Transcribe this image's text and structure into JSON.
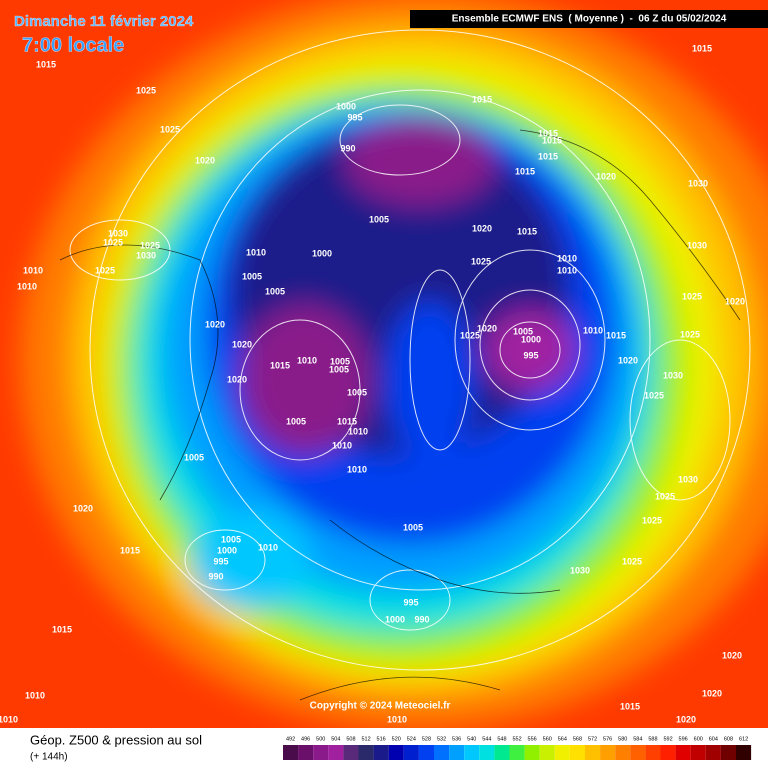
{
  "header": {
    "date": "Dimanche 11 février 2024",
    "time": "7:00 locale",
    "model": "Ensemble ECMWF ENS  ( Moyenne )  -  06 Z du 05/02/2024"
  },
  "pressure_labels": [
    1015,
    1025,
    1025,
    1020,
    1000,
    995,
    990,
    1015,
    1015,
    1015,
    1015,
    1020,
    1015,
    1030,
    1015,
    1030,
    1025,
    1025,
    1030,
    1010,
    1025,
    1010,
    1010,
    1005,
    1005,
    1000,
    1005,
    1020,
    1015,
    1025,
    1010,
    1010,
    1030,
    1025,
    1020,
    1020,
    1020,
    1020,
    1015,
    1010,
    1005,
    1005,
    1005,
    1005,
    1015,
    1010,
    1010,
    1010,
    1025,
    1020,
    1005,
    1000,
    995,
    1010,
    1015,
    1020,
    1025,
    1030,
    1025,
    1005,
    1020,
    1005,
    1000,
    995,
    990,
    1010,
    1015,
    1005,
    995,
    1000,
    990,
    1015,
    1030,
    1025,
    1025,
    1030,
    1025,
    1010,
    1015,
    1020,
    1020,
    1020,
    1010,
    1010
  ],
  "copyright": "Copyright © 2024 Meteociel.fr",
  "footer": {
    "title": "Géop. Z500 & pression au sol",
    "lead": "(+ 144h)"
  },
  "legend": {
    "values": [
      492,
      496,
      500,
      504,
      508,
      512,
      516,
      520,
      524,
      528,
      532,
      536,
      540,
      544,
      548,
      552,
      556,
      560,
      564,
      568,
      572,
      576,
      580,
      584,
      588,
      592,
      596,
      600,
      604,
      608,
      612
    ],
    "colors": [
      "#4b0c4b",
      "#6a106a",
      "#8a1a8a",
      "#a020a0",
      "#5a2a7a",
      "#2a2a6a",
      "#1a1a8a",
      "#0000b0",
      "#0020d0",
      "#0040f0",
      "#0070ff",
      "#00a0ff",
      "#00c8ff",
      "#00e0e0",
      "#00e890",
      "#40f040",
      "#90f000",
      "#c8f000",
      "#f0f000",
      "#ffe000",
      "#ffc000",
      "#ffa000",
      "#ff8000",
      "#ff6000",
      "#ff4000",
      "#ff2000",
      "#e00000",
      "#c00000",
      "#a00000",
      "#700000",
      "#300000"
    ]
  }
}
